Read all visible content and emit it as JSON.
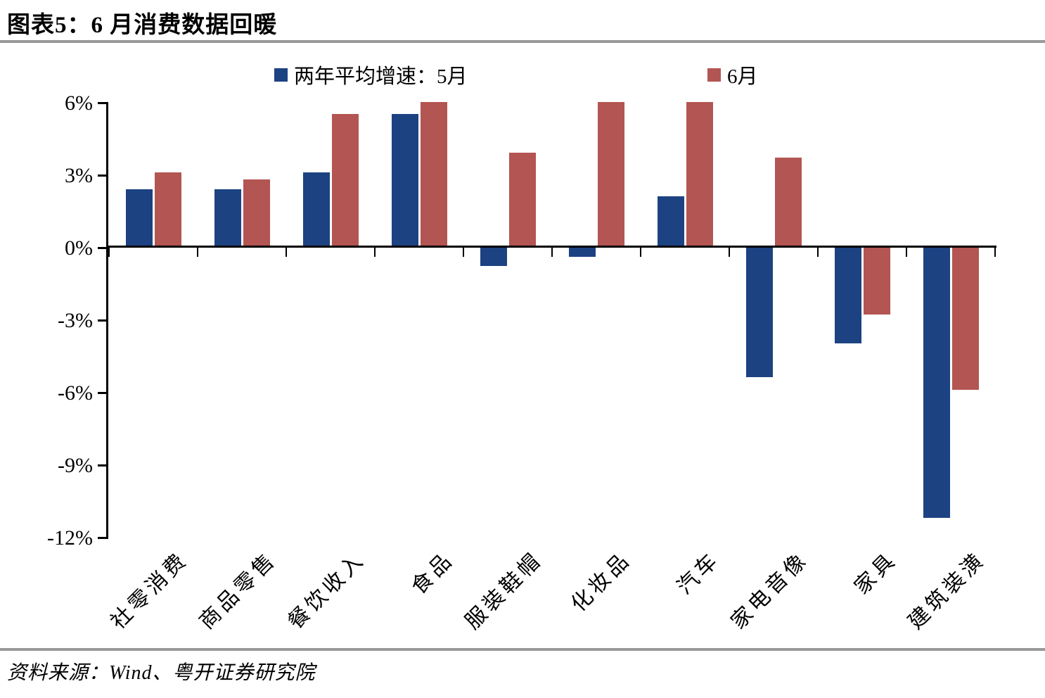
{
  "title": "图表5：6 月消费数据回暖",
  "source_note": "资料来源：Wind、粤开证券研究院",
  "legend": {
    "may": "两年平均增速：5月",
    "june": "6月"
  },
  "colors": {
    "may_blue": "#1C4282",
    "june_red": "#B35552",
    "axis_black": "#000000",
    "divider_gray": "#989898"
  },
  "y_axis": {
    "tick_labels": [
      "6%",
      "3%",
      "0%",
      "-3%",
      "-6%",
      "-9%",
      "-12%"
    ]
  },
  "chart_data": {
    "type": "bar",
    "title": "图表5：6 月消费数据回暖",
    "categories": [
      "社零消费",
      "商品零售",
      "餐饮收入",
      "食品",
      "服装鞋帽",
      "化妆品",
      "汽车",
      "家电音像",
      "家具",
      "建筑装潢"
    ],
    "series": [
      {
        "name": "两年平均增速：5月",
        "color": "#1C4282",
        "values": [
          2.4,
          2.4,
          3.1,
          5.5,
          -0.8,
          -0.4,
          2.1,
          -5.4,
          -4.0,
          -11.2
        ]
      },
      {
        "name": "6月",
        "color": "#B35552",
        "values": [
          3.1,
          2.8,
          5.5,
          6.0,
          3.9,
          6.0,
          6.0,
          3.7,
          -2.8,
          -5.9
        ]
      }
    ],
    "unit": "%",
    "xlabel": "",
    "ylabel": "",
    "ylim": [
      -12,
      6
    ],
    "ytick_step": 3,
    "grid": false,
    "legend_position": "top"
  }
}
